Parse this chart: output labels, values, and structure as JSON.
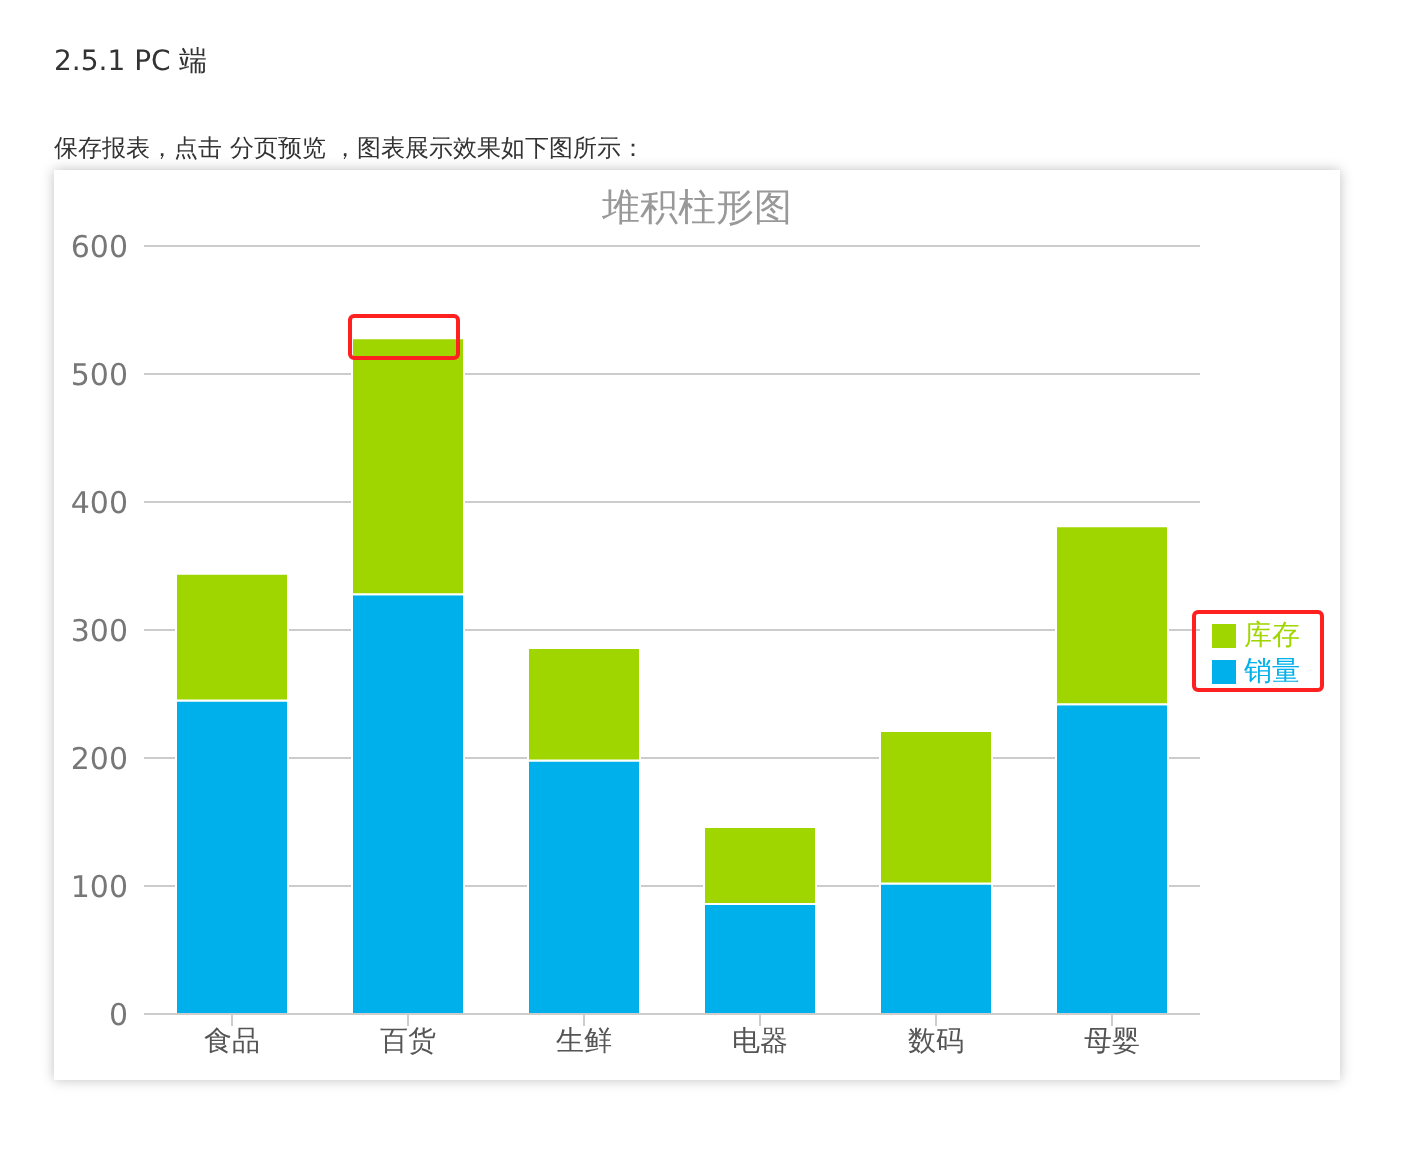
{
  "chart_data": {
    "type": "bar",
    "title": "堆积柱形图",
    "annotations": [
      "2.5.1 PC 端",
      "保存报表，点击 分页预览 ，图表展示效果如下图所示："
    ],
    "categories": [
      "食品",
      "百货",
      "生鲜",
      "电器",
      "数码",
      "母婴"
    ],
    "series": [
      {
        "name": "销量",
        "color": "#00b0ea",
        "values": [
          245,
          328,
          198,
          86,
          102,
          242
        ]
      },
      {
        "name": "库存",
        "color": "#9fd600",
        "values": [
          99,
          200,
          88,
          60,
          119,
          139
        ]
      }
    ],
    "stacked": true,
    "ylim": [
      0,
      600
    ],
    "yticks": [
      0,
      100,
      200,
      300,
      400,
      500,
      600
    ],
    "grid": "y",
    "legend": "right"
  }
}
